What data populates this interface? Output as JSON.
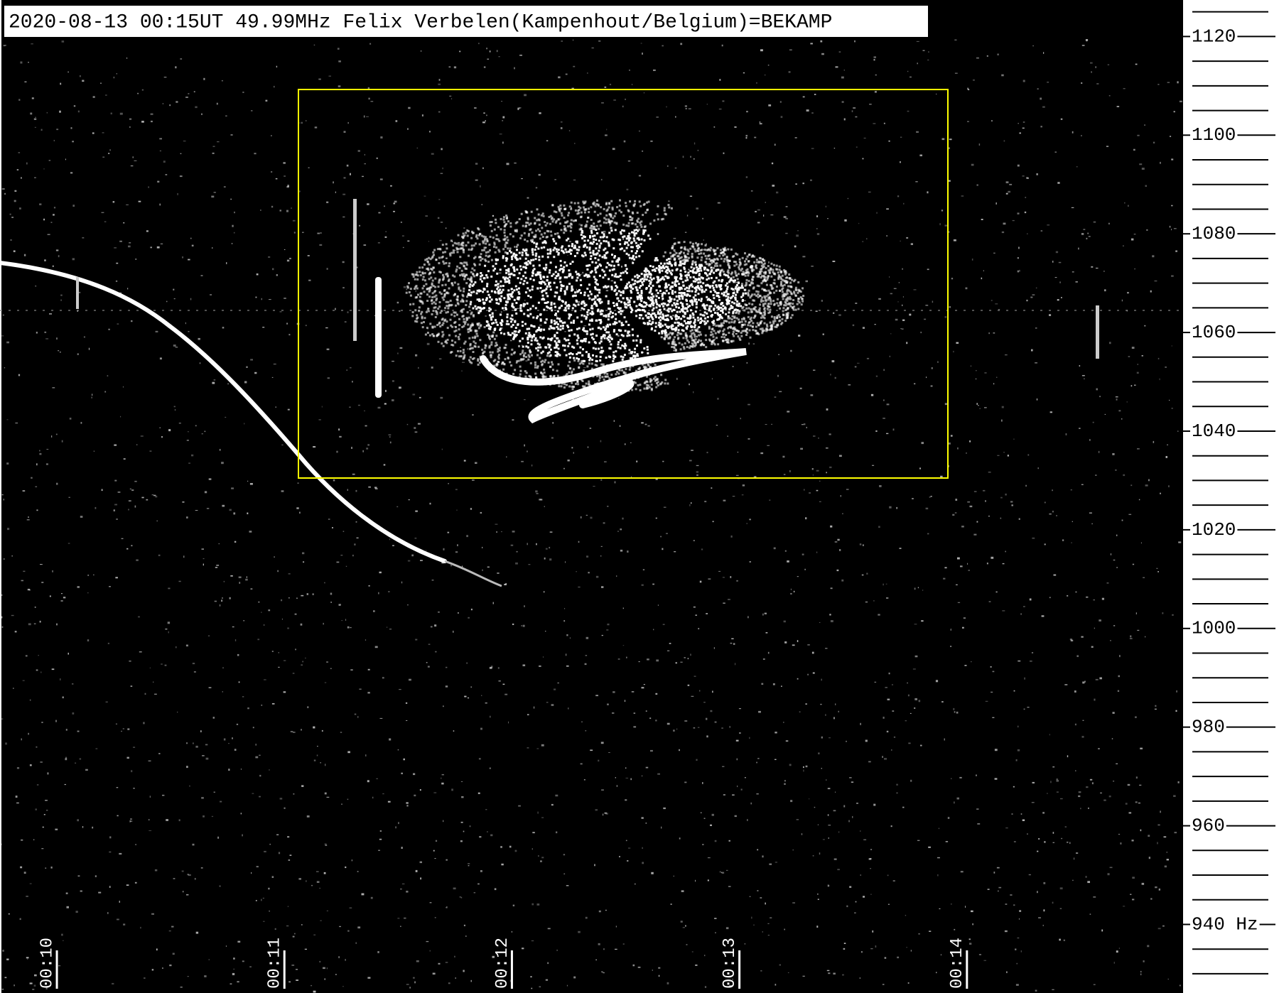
{
  "chart_data": {
    "type": "spectrogram",
    "title": "2020-08-13 00:15UT 49.99MHz Felix Verbelen(Kampenhout/Belgium)=BEKAMP",
    "xlim": [
      9.75,
      14.95
    ],
    "xticks": [
      {
        "value": 10,
        "label": "00:10"
      },
      {
        "value": 11,
        "label": "00:11"
      },
      {
        "value": 12,
        "label": "00:12"
      },
      {
        "value": 13,
        "label": "00:13"
      },
      {
        "value": 14,
        "label": "00:14"
      }
    ],
    "ylim": [
      926.1,
      1127.4
    ],
    "yticks": [
      {
        "value": 940,
        "label": "940 Hz"
      },
      960,
      980,
      1000,
      1020,
      1040,
      1060,
      1080,
      1100,
      1120
    ]
  }
}
